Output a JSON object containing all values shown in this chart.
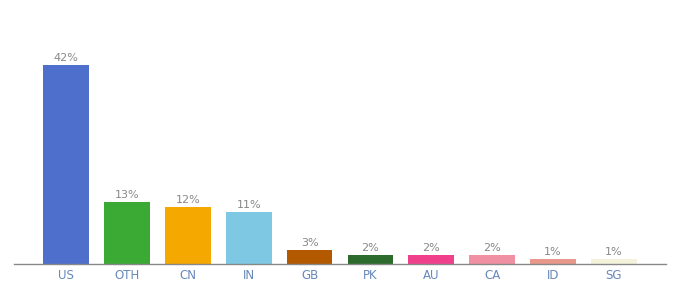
{
  "categories": [
    "US",
    "OTH",
    "CN",
    "IN",
    "GB",
    "PK",
    "AU",
    "CA",
    "ID",
    "SG"
  ],
  "values": [
    42,
    13,
    12,
    11,
    3,
    2,
    2,
    2,
    1,
    1
  ],
  "labels": [
    "42%",
    "13%",
    "12%",
    "11%",
    "3%",
    "2%",
    "2%",
    "2%",
    "1%",
    "1%"
  ],
  "bar_colors": [
    "#4f6fcd",
    "#3aaa35",
    "#f5a800",
    "#7ec8e3",
    "#b35900",
    "#2d6b2d",
    "#f0408c",
    "#f090a0",
    "#e8988a",
    "#f5f2dc"
  ],
  "background_color": "#ffffff",
  "ylim": [
    0,
    48
  ],
  "label_fontsize": 8,
  "tick_fontsize": 8.5,
  "bar_width": 0.75
}
